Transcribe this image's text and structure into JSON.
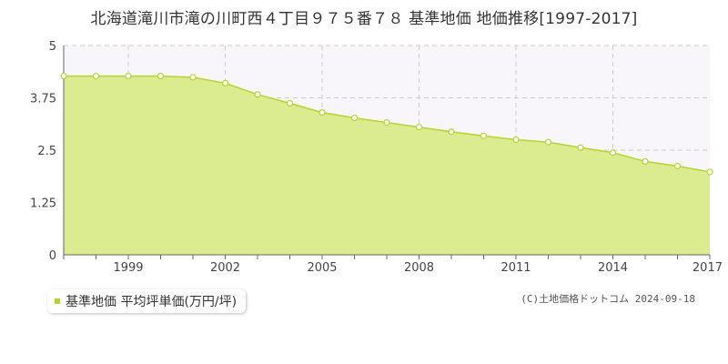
{
  "chart_data": {
    "type": "area",
    "title": "北海道滝川市滝の川町西４丁目９７５番７８ 基準地価 地価推移[1997-2017]",
    "x": [
      1997,
      1998,
      1999,
      2000,
      2001,
      2002,
      2003,
      2004,
      2005,
      2006,
      2007,
      2008,
      2009,
      2010,
      2011,
      2012,
      2013,
      2014,
      2015,
      2016,
      2017
    ],
    "series": [
      {
        "name": "基準地価 平均坪単価(万円/坪)",
        "values": [
          4.27,
          4.27,
          4.27,
          4.27,
          4.24,
          4.1,
          3.83,
          3.62,
          3.4,
          3.27,
          3.16,
          3.05,
          2.94,
          2.84,
          2.75,
          2.69,
          2.56,
          2.44,
          2.23,
          2.12,
          1.98
        ]
      }
    ],
    "ylim": [
      0,
      5
    ],
    "xlim": [
      1997,
      2017
    ],
    "yticks": [
      0,
      1.25,
      2.5,
      3.75,
      5
    ],
    "ytick_labels": [
      "0",
      "1.25",
      "2.5",
      "3.75",
      "5"
    ],
    "xticks": [
      1999,
      2002,
      2005,
      2008,
      2011,
      2014,
      2017
    ],
    "grid": true,
    "colors": {
      "fill": "#dbeb8f",
      "line": "#b5d334",
      "marker_fill": "#ffffff",
      "grid": "#cccccc",
      "plot_bg": "#f8f6fa"
    }
  },
  "legend": {
    "label": "基準地価 平均坪単価(万円/坪)"
  },
  "copyright": "(C)土地価格ドットコム 2024-09-18"
}
